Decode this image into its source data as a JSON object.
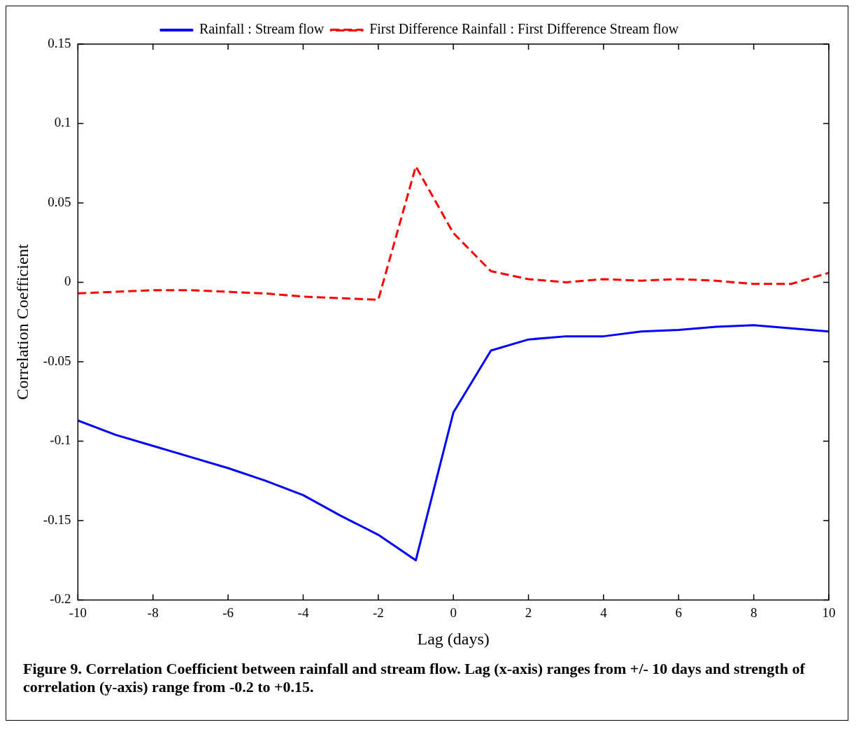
{
  "chart_data": {
    "type": "line",
    "xlabel": "Lag (days)",
    "ylabel": "Correlation Coefficient",
    "x": [
      -10,
      -9,
      -8,
      -7,
      -6,
      -5,
      -4,
      -3,
      -2,
      -1,
      0,
      1,
      2,
      3,
      4,
      5,
      6,
      7,
      8,
      9,
      10
    ],
    "series": [
      {
        "name": "Rainfall : Stream flow",
        "color": "#0000ff",
        "line_style": "solid",
        "values": [
          -0.087,
          -0.096,
          -0.103,
          -0.11,
          -0.117,
          -0.125,
          -0.134,
          -0.147,
          -0.159,
          -0.175,
          -0.082,
          -0.043,
          -0.036,
          -0.034,
          -0.034,
          -0.031,
          -0.03,
          -0.028,
          -0.027,
          -0.029,
          -0.031
        ]
      },
      {
        "name": "First Difference Rainfall : First Difference Stream flow",
        "color": "#ff0000",
        "line_style": "dashed",
        "values": [
          -0.007,
          -0.006,
          -0.005,
          -0.005,
          -0.006,
          -0.007,
          -0.009,
          -0.01,
          -0.011,
          0.073,
          0.031,
          0.007,
          0.002,
          0.0,
          0.002,
          0.001,
          0.002,
          0.001,
          -0.001,
          -0.001,
          0.006
        ]
      }
    ],
    "xlim": [
      -10,
      10
    ],
    "xticks": [
      -10,
      -8,
      -6,
      -4,
      -2,
      0,
      2,
      4,
      6,
      8,
      10
    ],
    "ylim": [
      -0.2,
      0.15
    ],
    "yticks": [
      -0.2,
      -0.15,
      -0.1,
      -0.05,
      0,
      0.05,
      0.1,
      0.15
    ],
    "grid": false,
    "legend": "top",
    "marker": "none",
    "annotations": [
      "Figure 9.  Correlation Coefficient between rainfall and stream flow.  Lag (x-axis) ranges from +/- 10 days and strength of correlation (y-axis) range from -0.2 to +0.15."
    ]
  }
}
